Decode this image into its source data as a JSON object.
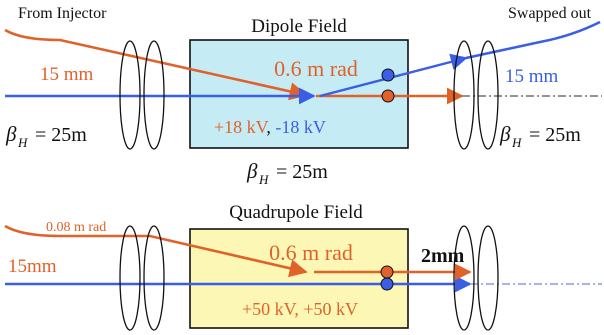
{
  "colors": {
    "orange": "#e0622a",
    "blue": "#3a5ee6",
    "dipole_fill": "#c5ecf5",
    "quad_fill": "#fdf7b5",
    "ink": "#111111"
  },
  "top": {
    "from_injector": "From Injector",
    "swapped_out": "Swapped out",
    "field_title": "Dipole Field",
    "deflection": "0.6 m rad",
    "offset_left": "15 mm",
    "offset_right": "15 mm",
    "kick_pos": "+18 kV",
    "kick_sep": ", ",
    "kick_neg": "-18 kV",
    "beta_left": "= 25m",
    "beta_right": "= 25m",
    "beta_below": "= 25m"
  },
  "bottom": {
    "field_title": "Quadrupole Field",
    "injector_angle": "0.08 m rad",
    "offset_left": "15mm",
    "deflection": "0.6 m rad",
    "separation": "2mm",
    "kick": "+50 kV, +50 kV"
  }
}
